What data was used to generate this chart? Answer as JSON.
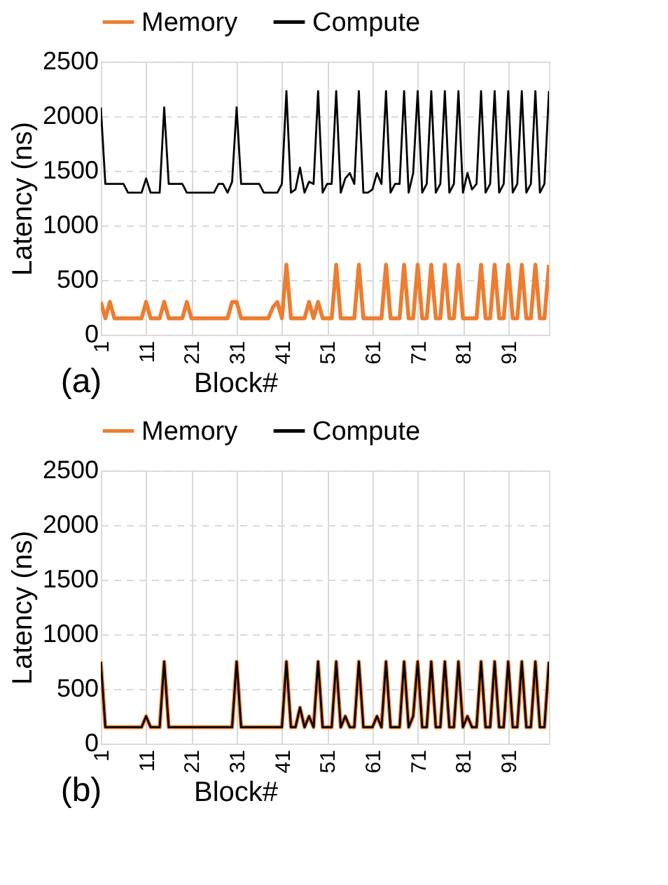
{
  "chart_data": [
    {
      "type": "line",
      "xlabel": "Block#",
      "ylabel": "Latency (ns)",
      "annotations": [
        "(a)"
      ],
      "xlim": [
        1,
        100
      ],
      "xticks": [
        1,
        11,
        21,
        31,
        41,
        51,
        61,
        71,
        81,
        91
      ],
      "ylim": [
        0,
        2500
      ],
      "yticks": [
        0,
        500,
        1000,
        1500,
        2000,
        2500
      ],
      "grid": true,
      "legend": "top",
      "marker": "none",
      "line_style": "solid",
      "x": [
        1,
        2,
        3,
        4,
        5,
        6,
        7,
        8,
        9,
        10,
        11,
        12,
        13,
        14,
        15,
        16,
        17,
        18,
        19,
        20,
        21,
        22,
        23,
        24,
        25,
        26,
        27,
        28,
        29,
        30,
        31,
        32,
        33,
        34,
        35,
        36,
        37,
        38,
        39,
        40,
        41,
        42,
        43,
        44,
        45,
        46,
        47,
        48,
        49,
        50,
        51,
        52,
        53,
        54,
        55,
        56,
        57,
        58,
        59,
        60,
        61,
        62,
        63,
        64,
        65,
        66,
        67,
        68,
        69,
        70,
        71,
        72,
        73,
        74,
        75,
        76,
        77,
        78,
        79,
        80,
        81,
        82,
        83,
        84,
        85,
        86,
        87,
        88,
        89,
        90,
        91,
        92,
        93,
        94,
        95,
        96,
        97,
        98,
        99,
        100
      ],
      "series": [
        {
          "name": "Memory",
          "color": "#ed7d31",
          "values": [
            300,
            150,
            300,
            150,
            150,
            150,
            150,
            150,
            150,
            150,
            300,
            150,
            150,
            150,
            300,
            150,
            150,
            150,
            150,
            300,
            150,
            150,
            150,
            150,
            150,
            150,
            150,
            150,
            150,
            300,
            300,
            150,
            150,
            150,
            150,
            150,
            150,
            150,
            250,
            300,
            150,
            640,
            150,
            150,
            150,
            150,
            300,
            150,
            300,
            150,
            150,
            150,
            640,
            150,
            150,
            150,
            150,
            640,
            150,
            150,
            150,
            150,
            150,
            640,
            150,
            150,
            150,
            640,
            150,
            150,
            640,
            150,
            150,
            640,
            150,
            150,
            640,
            150,
            150,
            640,
            150,
            150,
            150,
            150,
            640,
            150,
            150,
            640,
            150,
            150,
            640,
            150,
            150,
            640,
            150,
            150,
            640,
            150,
            150,
            640
          ]
        },
        {
          "name": "Compute",
          "color": "#000000",
          "values": [
            2080,
            1380,
            1380,
            1380,
            1380,
            1380,
            1300,
            1300,
            1300,
            1300,
            1430,
            1300,
            1300,
            1300,
            2080,
            1380,
            1380,
            1380,
            1380,
            1300,
            1300,
            1300,
            1300,
            1300,
            1300,
            1300,
            1380,
            1380,
            1300,
            1400,
            2080,
            1380,
            1380,
            1380,
            1380,
            1380,
            1300,
            1300,
            1300,
            1300,
            1380,
            2230,
            1300,
            1330,
            1530,
            1300,
            1400,
            1380,
            2230,
            1300,
            1380,
            1380,
            2230,
            1300,
            1430,
            1480,
            1380,
            2230,
            1300,
            1300,
            1330,
            1480,
            1380,
            2230,
            1300,
            1380,
            1380,
            2230,
            1300,
            1480,
            2230,
            1300,
            1380,
            2230,
            1300,
            1380,
            2230,
            1300,
            1380,
            2230,
            1300,
            1480,
            1330,
            1380,
            2230,
            1300,
            1380,
            2230,
            1300,
            1380,
            2230,
            1300,
            1380,
            2230,
            1300,
            1380,
            2230,
            1300,
            1380,
            2230
          ]
        }
      ]
    },
    {
      "type": "line",
      "xlabel": "Block#",
      "ylabel": "Latency (ns)",
      "annotations": [
        "(b)"
      ],
      "xlim": [
        1,
        100
      ],
      "xticks": [
        1,
        11,
        21,
        31,
        41,
        51,
        61,
        71,
        81,
        91
      ],
      "ylim": [
        0,
        2500
      ],
      "yticks": [
        0,
        500,
        1000,
        1500,
        2000,
        2500
      ],
      "grid": true,
      "legend": "top",
      "marker": "none",
      "line_style": "solid",
      "x": [
        1,
        2,
        3,
        4,
        5,
        6,
        7,
        8,
        9,
        10,
        11,
        12,
        13,
        14,
        15,
        16,
        17,
        18,
        19,
        20,
        21,
        22,
        23,
        24,
        25,
        26,
        27,
        28,
        29,
        30,
        31,
        32,
        33,
        34,
        35,
        36,
        37,
        38,
        39,
        40,
        41,
        42,
        43,
        44,
        45,
        46,
        47,
        48,
        49,
        50,
        51,
        52,
        53,
        54,
        55,
        56,
        57,
        58,
        59,
        60,
        61,
        62,
        63,
        64,
        65,
        66,
        67,
        68,
        69,
        70,
        71,
        72,
        73,
        74,
        75,
        76,
        77,
        78,
        79,
        80,
        81,
        82,
        83,
        84,
        85,
        86,
        87,
        88,
        89,
        90,
        91,
        92,
        93,
        94,
        95,
        96,
        97,
        98,
        99,
        100
      ],
      "series": [
        {
          "name": "Memory",
          "color": "#ed7d31",
          "values": [
            750,
            150,
            150,
            150,
            150,
            150,
            150,
            150,
            150,
            150,
            250,
            150,
            150,
            150,
            750,
            150,
            150,
            150,
            150,
            150,
            150,
            150,
            150,
            150,
            150,
            150,
            150,
            150,
            150,
            150,
            750,
            150,
            150,
            150,
            150,
            150,
            150,
            150,
            150,
            150,
            150,
            750,
            150,
            150,
            330,
            150,
            250,
            150,
            750,
            150,
            150,
            150,
            750,
            150,
            250,
            150,
            150,
            750,
            150,
            150,
            150,
            250,
            150,
            750,
            150,
            150,
            150,
            750,
            150,
            250,
            750,
            150,
            150,
            750,
            150,
            150,
            750,
            150,
            150,
            750,
            150,
            250,
            150,
            150,
            750,
            150,
            150,
            750,
            150,
            150,
            750,
            150,
            150,
            750,
            150,
            150,
            750,
            150,
            150,
            750
          ]
        },
        {
          "name": "Compute",
          "color": "#000000",
          "values": [
            750,
            150,
            150,
            150,
            150,
            150,
            150,
            150,
            150,
            150,
            250,
            150,
            150,
            150,
            750,
            150,
            150,
            150,
            150,
            150,
            150,
            150,
            150,
            150,
            150,
            150,
            150,
            150,
            150,
            150,
            750,
            150,
            150,
            150,
            150,
            150,
            150,
            150,
            150,
            150,
            150,
            750,
            150,
            150,
            330,
            150,
            250,
            150,
            750,
            150,
            150,
            150,
            750,
            150,
            250,
            150,
            150,
            750,
            150,
            150,
            150,
            250,
            150,
            750,
            150,
            150,
            150,
            750,
            150,
            250,
            750,
            150,
            150,
            750,
            150,
            150,
            750,
            150,
            150,
            750,
            150,
            250,
            150,
            150,
            750,
            150,
            150,
            750,
            150,
            150,
            750,
            150,
            150,
            750,
            150,
            150,
            750,
            150,
            150,
            750
          ]
        }
      ]
    }
  ]
}
